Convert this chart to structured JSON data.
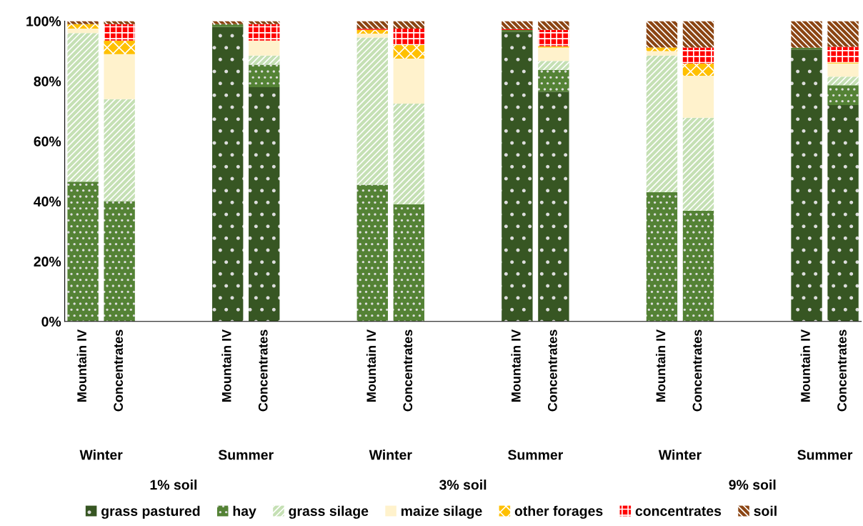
{
  "chart_data": {
    "type": "bar",
    "stacked": true,
    "categories": [
      "Mountain IV",
      "Concentrates",
      "Mountain IV",
      "Concentrates",
      "Mountain IV",
      "Concentrates",
      "Mountain IV",
      "Concentrates",
      "Mountain IV",
      "Concentrates",
      "Mountain IV",
      "Concentrates"
    ],
    "series": [
      {
        "name": "grass pastured",
        "color": "#375623",
        "values": [
          null,
          null,
          98,
          78,
          null,
          null,
          96.5,
          76.5,
          null,
          null,
          90.5,
          72
        ]
      },
      {
        "name": "hay",
        "color": "#548235",
        "values": [
          46.5,
          40,
          1,
          7.5,
          45.5,
          39,
          0.5,
          7.2,
          43,
          36.8,
          0.6,
          6.6
        ]
      },
      {
        "name": "grass silage",
        "color": "#c5e0b4",
        "values": [
          49.5,
          34,
          null,
          3,
          49,
          33.5,
          null,
          3,
          45.5,
          31,
          null,
          2.9
        ]
      },
      {
        "name": "maize silage",
        "color": "#fff2cc",
        "values": [
          1.5,
          15,
          null,
          5,
          1.3,
          15,
          null,
          4.5,
          1.5,
          14,
          null,
          4.4
        ]
      },
      {
        "name": "other forages",
        "color": "#ffc000",
        "values": [
          1.5,
          4.5,
          null,
          null,
          1.3,
          4.5,
          null,
          0.4,
          1.2,
          4,
          null,
          0.3
        ]
      },
      {
        "name": "concentrates",
        "color": "#ff0000",
        "values": [
          null,
          5.5,
          null,
          5.5,
          0.3,
          5.5,
          0.3,
          5.5,
          null,
          5.4,
          null,
          5.2
        ]
      },
      {
        "name": "soil",
        "color": "#8b4513",
        "values": [
          1,
          1,
          1,
          1,
          2.6,
          2.5,
          2.7,
          2.9,
          8.8,
          8.8,
          8.9,
          8.6
        ]
      }
    ],
    "ylim": [
      0,
      100
    ],
    "yticks": [
      {
        "value": 0,
        "label": "0%"
      },
      {
        "value": 20,
        "label": "20%"
      },
      {
        "value": 40,
        "label": "40%"
      },
      {
        "value": 60,
        "label": "60%"
      },
      {
        "value": 80,
        "label": "80%"
      },
      {
        "value": 100,
        "label": "100%"
      }
    ],
    "annotations": [
      "Winter",
      "Summer",
      "Winter",
      "Summer",
      "Winter",
      "Summer",
      "1% soil",
      "3% soil",
      "9% soil"
    ],
    "grid": false,
    "legend": "bottom"
  }
}
